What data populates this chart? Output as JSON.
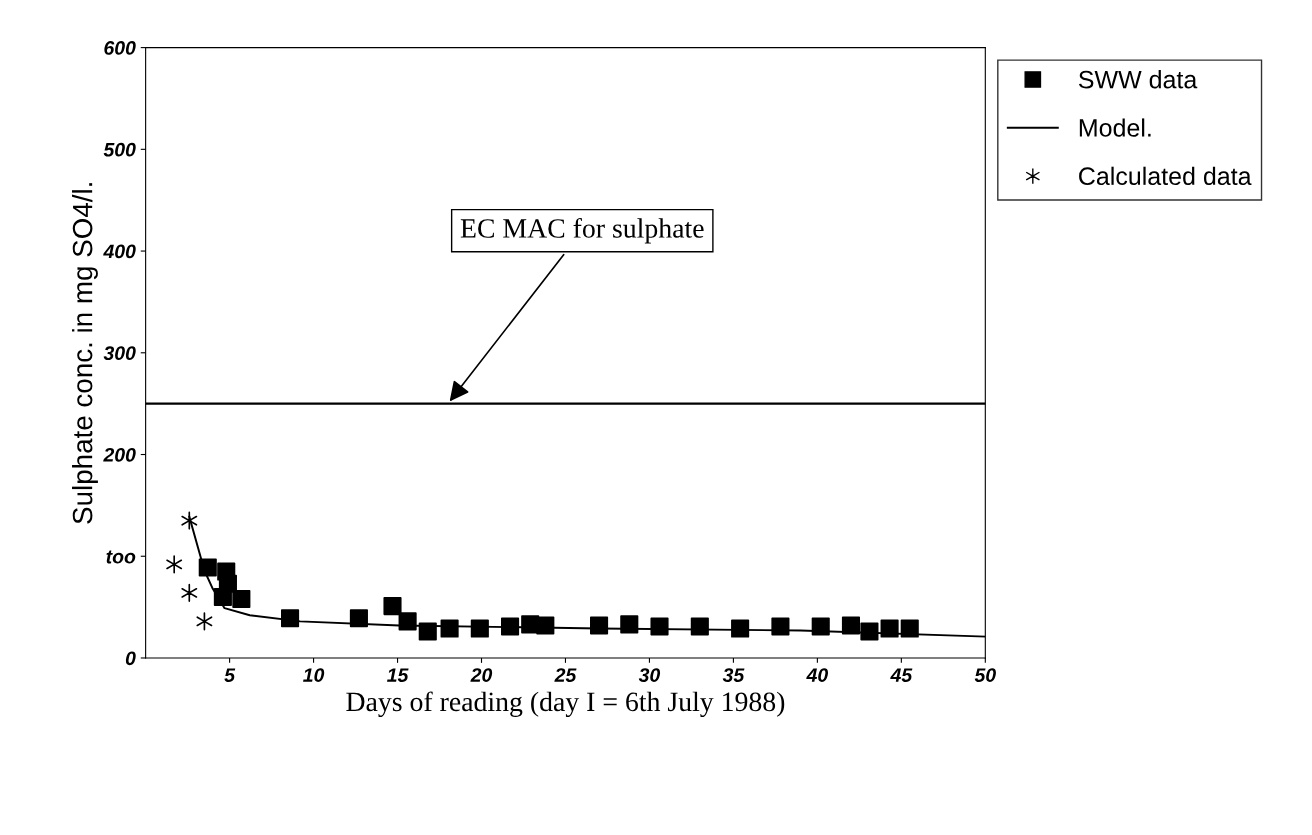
{
  "chart_data": {
    "type": "scatter",
    "xlabel": "Days of reading (day I = 6th July 1988)",
    "ylabel": "Sulphate conc. in mg SO4/l.",
    "series": [
      {
        "name": "SWW data",
        "marker": "square",
        "color": "#000000",
        "x": [
          3.7,
          4.8,
          4.9,
          4.6,
          5.7,
          8.6,
          12.7,
          14.7,
          15.6,
          16.8,
          18.1,
          19.9,
          21.7,
          22.9,
          23.8,
          27,
          28.8,
          30.6,
          33,
          35.4,
          37.8,
          40.2,
          42,
          43.1,
          44.3,
          45.5
        ],
        "values": [
          89,
          85,
          73,
          60,
          58,
          39,
          39,
          51,
          36,
          26,
          29,
          29,
          31,
          33,
          32,
          32,
          33,
          31,
          31,
          29,
          31,
          31,
          32,
          26,
          29,
          29
        ]
      },
      {
        "name": "Model.",
        "type": "line",
        "marker": "none",
        "color": "#000000",
        "x": [
          2.6,
          3.5,
          4.0,
          4.7,
          6.2,
          9.2,
          15.1,
          27,
          39,
          50
        ],
        "values": [
          139,
          86,
          68,
          49,
          42,
          36,
          32,
          29,
          27,
          21
        ]
      },
      {
        "name": "Calculated data",
        "marker": "cross",
        "color": "#000000",
        "x": [
          2.6,
          1.7,
          2.6,
          3.5
        ],
        "values": [
          135,
          92,
          64,
          36
        ]
      }
    ],
    "xlim": [
      0,
      50
    ],
    "ylim": [
      0,
      600
    ],
    "xticks": [
      5,
      10,
      15,
      20,
      25,
      30,
      35,
      40,
      45,
      50
    ],
    "yticks": [
      0,
      {
        "value": 100,
        "label": "too"
      },
      200,
      300,
      400,
      500,
      600
    ],
    "ref_lines": [
      {
        "axis": "y",
        "value": 250,
        "label": "EC MAC for sulphate",
        "color": "#000000"
      }
    ],
    "grid": false,
    "legend": "right"
  }
}
